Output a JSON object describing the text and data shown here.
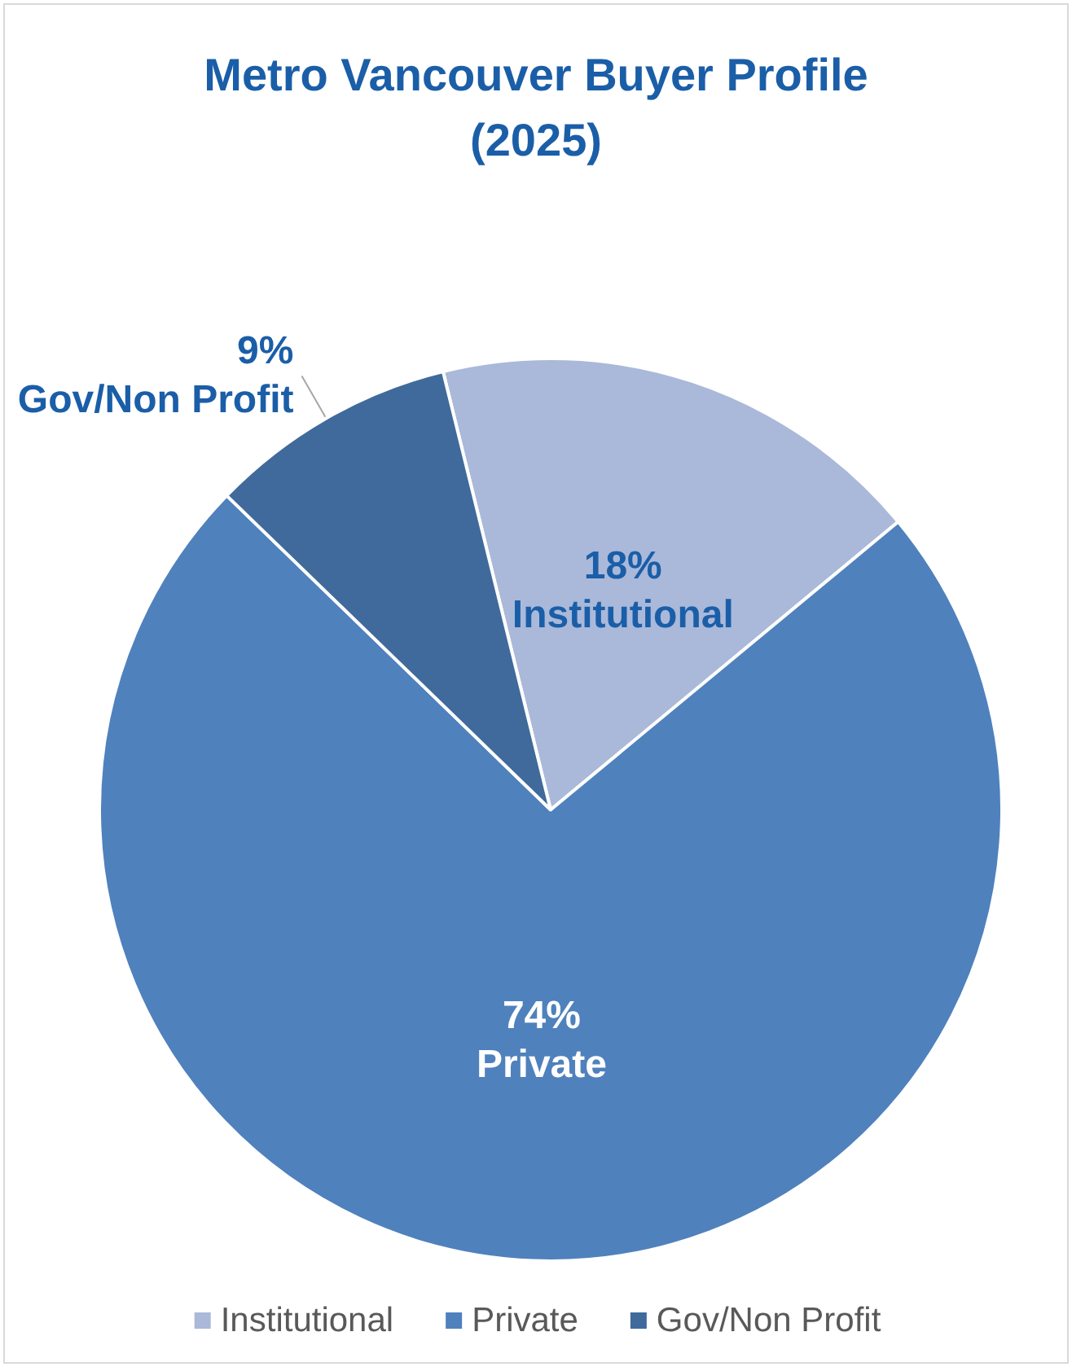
{
  "chart_data": {
    "type": "pie",
    "title": "Metro Vancouver Buyer Profile\n(2025)",
    "categories": [
      "Institutional",
      "Private",
      "Gov/Non Profit"
    ],
    "values": [
      18,
      74,
      9
    ],
    "value_labels": [
      "18%",
      "74%",
      "9%"
    ],
    "colors": [
      "#aab9d9",
      "#4f81bd",
      "#3f6a9b"
    ],
    "legend": "bottom"
  }
}
